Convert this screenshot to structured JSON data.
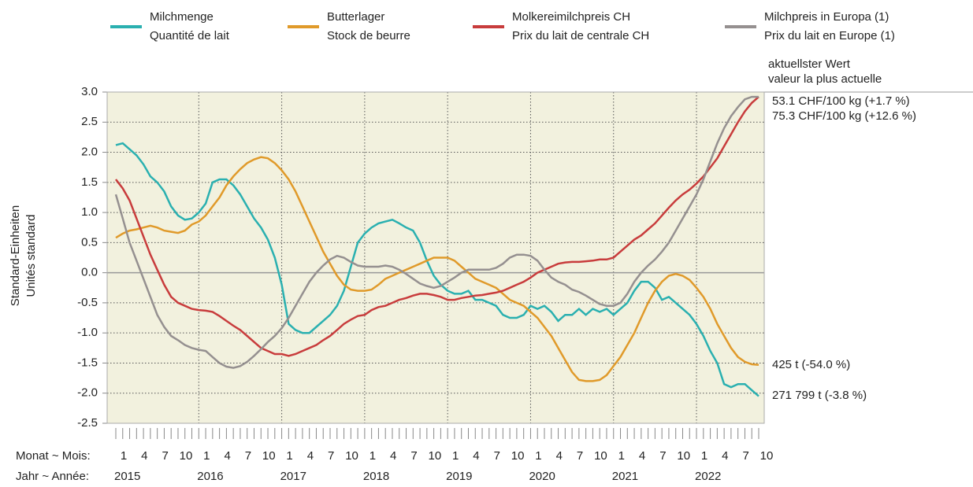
{
  "chart_data": {
    "type": "line",
    "y_label": [
      "Standard-Einheiten",
      "Unités standard"
    ],
    "x_label_month": "Monat ~ Mois:",
    "x_label_year": "Jahr ~ Année:",
    "annotation": [
      "aktuellster Wert",
      "valeur la plus actuelle"
    ],
    "categories": [
      "1",
      null,
      null,
      "4",
      null,
      null,
      "7",
      null,
      null,
      "10",
      null,
      null,
      "1",
      null,
      null,
      "4",
      null,
      null,
      "7",
      null,
      null,
      "10",
      null,
      null,
      "1",
      null,
      null,
      "4",
      null,
      null,
      "7",
      null,
      null,
      "10",
      null,
      null,
      "1",
      null,
      null,
      "4",
      null,
      null,
      "7",
      null,
      null,
      "10",
      null,
      null,
      "1",
      null,
      null,
      "4",
      null,
      null,
      "7",
      null,
      null,
      "10",
      null,
      null,
      "1",
      null,
      null,
      "4",
      null,
      null,
      "7",
      null,
      null,
      "10",
      null,
      null,
      "1",
      null,
      null,
      "4",
      null,
      null,
      "7",
      null,
      null,
      "10",
      null,
      null,
      "1",
      null,
      null,
      "4",
      null,
      null,
      "7",
      null,
      null,
      "10"
    ],
    "years": [
      "2015",
      "2016",
      "2017",
      "2018",
      "2019",
      "2020",
      "2021",
      "2022"
    ],
    "ylim": [
      -2.5,
      3.0
    ],
    "yticks": [
      {
        "value": 3,
        "label": "3.0"
      },
      2.5,
      {
        "value": 2,
        "label": "2.0"
      },
      1.5,
      {
        "value": 1,
        "label": "1.0"
      },
      0.5,
      {
        "value": 0,
        "label": "0.0"
      },
      -0.5,
      {
        "value": -1,
        "label": "-1.0"
      },
      -1.5,
      {
        "value": -2,
        "label": "-2.0"
      },
      -2.5
    ],
    "grid": true,
    "series": [
      {
        "name": "Milchmenge",
        "name_fr": "Quantité de lait",
        "color": "#2ab0b0",
        "end_label": "271 799 t (-3.8 %)",
        "values": [
          2.12,
          2.15,
          2.05,
          1.95,
          1.8,
          1.6,
          1.5,
          1.35,
          1.1,
          0.95,
          0.88,
          0.9,
          1.0,
          1.15,
          1.5,
          1.55,
          1.55,
          1.45,
          1.3,
          1.1,
          0.9,
          0.75,
          0.55,
          0.25,
          -0.2,
          -0.85,
          -0.95,
          -1.0,
          -1.0,
          -0.9,
          -0.8,
          -0.7,
          -0.55,
          -0.3,
          0.1,
          0.5,
          0.65,
          0.75,
          0.82,
          0.85,
          0.88,
          0.82,
          0.75,
          0.7,
          0.5,
          0.2,
          -0.05,
          -0.2,
          -0.3,
          -0.35,
          -0.35,
          -0.3,
          -0.45,
          -0.45,
          -0.5,
          -0.55,
          -0.7,
          -0.75,
          -0.75,
          -0.7,
          -0.55,
          -0.6,
          -0.55,
          -0.65,
          -0.8,
          -0.7,
          -0.7,
          -0.6,
          -0.7,
          -0.6,
          -0.65,
          -0.6,
          -0.7,
          -0.6,
          -0.5,
          -0.3,
          -0.15,
          -0.15,
          -0.25,
          -0.45,
          -0.4,
          -0.5,
          -0.6,
          -0.7,
          -0.85,
          -1.05,
          -1.3,
          -1.5,
          -1.85,
          -1.9,
          -1.85,
          -1.85,
          -1.95,
          -2.05
        ]
      },
      {
        "name": "Butterlager",
        "name_fr": "Stock de beurre",
        "color": "#e09a2a",
        "end_label": "425 t (-54.0 %)",
        "values": [
          0.58,
          0.65,
          0.7,
          0.72,
          0.75,
          0.78,
          0.75,
          0.7,
          0.68,
          0.66,
          0.7,
          0.8,
          0.85,
          0.95,
          1.1,
          1.25,
          1.45,
          1.6,
          1.72,
          1.82,
          1.88,
          1.92,
          1.9,
          1.82,
          1.7,
          1.55,
          1.35,
          1.1,
          0.85,
          0.6,
          0.35,
          0.15,
          -0.05,
          -0.2,
          -0.28,
          -0.3,
          -0.3,
          -0.28,
          -0.2,
          -0.1,
          -0.05,
          0.0,
          0.05,
          0.1,
          0.15,
          0.2,
          0.25,
          0.25,
          0.25,
          0.2,
          0.1,
          0.0,
          -0.1,
          -0.15,
          -0.2,
          -0.25,
          -0.35,
          -0.45,
          -0.5,
          -0.55,
          -0.65,
          -0.75,
          -0.9,
          -1.05,
          -1.25,
          -1.45,
          -1.65,
          -1.78,
          -1.8,
          -1.8,
          -1.78,
          -1.7,
          -1.55,
          -1.4,
          -1.2,
          -1.0,
          -0.75,
          -0.5,
          -0.3,
          -0.15,
          -0.05,
          -0.02,
          -0.05,
          -0.12,
          -0.25,
          -0.4,
          -0.6,
          -0.85,
          -1.05,
          -1.25,
          -1.4,
          -1.48,
          -1.52,
          -1.53
        ]
      },
      {
        "name": "Molkereimilchpreis CH",
        "name_fr": "Prix du lait de centrale CH",
        "color": "#c83c3c",
        "end_label": "75.3 CHF/100 kg (+12.6 %)",
        "values": [
          1.55,
          1.4,
          1.2,
          0.9,
          0.6,
          0.3,
          0.05,
          -0.2,
          -0.4,
          -0.5,
          -0.55,
          -0.6,
          -0.62,
          -0.63,
          -0.65,
          -0.72,
          -0.8,
          -0.88,
          -0.95,
          -1.05,
          -1.15,
          -1.25,
          -1.3,
          -1.35,
          -1.35,
          -1.38,
          -1.35,
          -1.3,
          -1.25,
          -1.2,
          -1.12,
          -1.05,
          -0.95,
          -0.85,
          -0.78,
          -0.72,
          -0.7,
          -0.62,
          -0.57,
          -0.55,
          -0.5,
          -0.45,
          -0.42,
          -0.38,
          -0.35,
          -0.35,
          -0.37,
          -0.4,
          -0.45,
          -0.45,
          -0.42,
          -0.4,
          -0.38,
          -0.37,
          -0.35,
          -0.33,
          -0.3,
          -0.25,
          -0.2,
          -0.15,
          -0.08,
          0.0,
          0.05,
          0.1,
          0.15,
          0.17,
          0.18,
          0.18,
          0.19,
          0.2,
          0.22,
          0.22,
          0.25,
          0.35,
          0.45,
          0.55,
          0.62,
          0.72,
          0.82,
          0.95,
          1.08,
          1.2,
          1.3,
          1.38,
          1.48,
          1.6,
          1.75,
          1.9,
          2.1,
          2.3,
          2.5,
          2.68,
          2.82,
          2.92
        ]
      },
      {
        "name": "Milchpreis in Europa (1)",
        "name_fr": "Prix du lait en Europe (1)",
        "color": "#959090",
        "end_label": "53.1 CHF/100 kg (+1.7 %)",
        "values": [
          1.3,
          0.9,
          0.5,
          0.2,
          -0.1,
          -0.4,
          -0.7,
          -0.9,
          -1.05,
          -1.12,
          -1.2,
          -1.25,
          -1.28,
          -1.3,
          -1.4,
          -1.5,
          -1.56,
          -1.58,
          -1.55,
          -1.48,
          -1.38,
          -1.27,
          -1.15,
          -1.05,
          -0.92,
          -0.75,
          -0.55,
          -0.35,
          -0.15,
          0.0,
          0.12,
          0.22,
          0.28,
          0.25,
          0.18,
          0.12,
          0.1,
          0.1,
          0.1,
          0.12,
          0.1,
          0.05,
          -0.02,
          -0.1,
          -0.18,
          -0.22,
          -0.25,
          -0.22,
          -0.15,
          -0.08,
          0.0,
          0.05,
          0.05,
          0.05,
          0.05,
          0.08,
          0.15,
          0.25,
          0.3,
          0.3,
          0.28,
          0.2,
          0.05,
          -0.08,
          -0.15,
          -0.2,
          -0.28,
          -0.32,
          -0.38,
          -0.45,
          -0.52,
          -0.55,
          -0.55,
          -0.5,
          -0.35,
          -0.15,
          0.0,
          0.12,
          0.22,
          0.35,
          0.5,
          0.7,
          0.9,
          1.1,
          1.3,
          1.55,
          1.85,
          2.15,
          2.4,
          2.6,
          2.75,
          2.88,
          2.92,
          2.92
        ]
      }
    ]
  }
}
